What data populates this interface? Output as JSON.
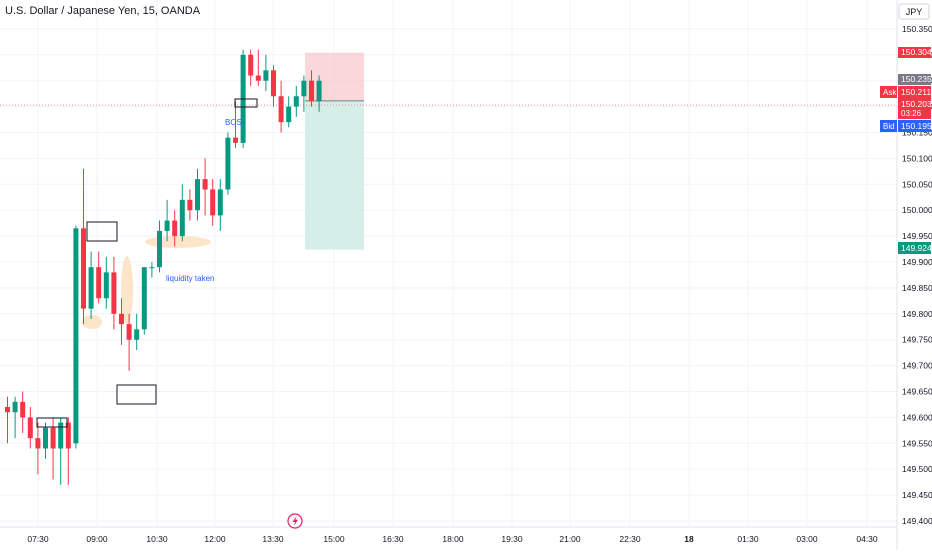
{
  "header": {
    "title": "U.S. Dollar / Japanese Yen, 15, OANDA"
  },
  "currency": "JPY",
  "chart_data": {
    "type": "candlestick",
    "title": "U.S. Dollar / Japanese Yen, 15, OANDA",
    "ylim": [
      149.395,
      150.385
    ],
    "y_ticks": [
      150.35,
      150.3,
      150.25,
      150.2,
      150.15,
      150.1,
      150.05,
      150.0,
      149.95,
      149.9,
      149.85,
      149.8,
      149.75,
      149.7,
      149.65,
      149.6,
      149.55,
      149.5,
      149.45,
      149.4
    ],
    "x_ticks": [
      "07:30",
      "09:00",
      "10:30",
      "12:00",
      "13:30",
      "15:00",
      "16:30",
      "18:00",
      "19:30",
      "21:00",
      "22:30",
      "18",
      "01:30",
      "03:00",
      "04:30"
    ],
    "candles": [
      {
        "o": 149.62,
        "h": 149.64,
        "l": 149.55,
        "c": 149.61
      },
      {
        "o": 149.61,
        "h": 149.64,
        "l": 149.56,
        "c": 149.63
      },
      {
        "o": 149.63,
        "h": 149.65,
        "l": 149.57,
        "c": 149.6
      },
      {
        "o": 149.6,
        "h": 149.62,
        "l": 149.54,
        "c": 149.56
      },
      {
        "o": 149.56,
        "h": 149.59,
        "l": 149.49,
        "c": 149.54
      },
      {
        "o": 149.54,
        "h": 149.59,
        "l": 149.52,
        "c": 149.58
      },
      {
        "o": 149.58,
        "h": 149.6,
        "l": 149.48,
        "c": 149.54
      },
      {
        "o": 149.54,
        "h": 149.6,
        "l": 149.47,
        "c": 149.59
      },
      {
        "o": 149.59,
        "h": 149.6,
        "l": 149.47,
        "c": 149.54
      },
      {
        "o": 149.55,
        "h": 149.97,
        "l": 149.54,
        "c": 149.965
      },
      {
        "o": 149.965,
        "h": 150.08,
        "l": 149.78,
        "c": 149.81
      },
      {
        "o": 149.81,
        "h": 149.92,
        "l": 149.79,
        "c": 149.89
      },
      {
        "o": 149.89,
        "h": 149.92,
        "l": 149.82,
        "c": 149.83
      },
      {
        "o": 149.83,
        "h": 149.91,
        "l": 149.81,
        "c": 149.88
      },
      {
        "o": 149.88,
        "h": 149.91,
        "l": 149.77,
        "c": 149.8
      },
      {
        "o": 149.8,
        "h": 149.83,
        "l": 149.74,
        "c": 149.78
      },
      {
        "o": 149.78,
        "h": 149.8,
        "l": 149.69,
        "c": 149.75
      },
      {
        "o": 149.75,
        "h": 149.8,
        "l": 149.73,
        "c": 149.77
      },
      {
        "o": 149.77,
        "h": 149.89,
        "l": 149.76,
        "c": 149.89
      },
      {
        "o": 149.89,
        "h": 149.9,
        "l": 149.87,
        "c": 149.89
      },
      {
        "o": 149.89,
        "h": 149.98,
        "l": 149.88,
        "c": 149.96
      },
      {
        "o": 149.96,
        "h": 150.02,
        "l": 149.94,
        "c": 149.98
      },
      {
        "o": 149.98,
        "h": 150.0,
        "l": 149.93,
        "c": 149.95
      },
      {
        "o": 149.95,
        "h": 150.05,
        "l": 149.94,
        "c": 150.02
      },
      {
        "o": 150.02,
        "h": 150.04,
        "l": 149.98,
        "c": 150.0
      },
      {
        "o": 150.0,
        "h": 150.08,
        "l": 149.98,
        "c": 150.06
      },
      {
        "o": 150.06,
        "h": 150.1,
        "l": 149.99,
        "c": 150.04
      },
      {
        "o": 150.04,
        "h": 150.06,
        "l": 149.97,
        "c": 149.99
      },
      {
        "o": 149.99,
        "h": 150.06,
        "l": 149.96,
        "c": 150.04
      },
      {
        "o": 150.04,
        "h": 150.15,
        "l": 150.03,
        "c": 150.14
      },
      {
        "o": 150.14,
        "h": 150.21,
        "l": 150.12,
        "c": 150.13
      },
      {
        "o": 150.13,
        "h": 150.31,
        "l": 150.12,
        "c": 150.3
      },
      {
        "o": 150.3,
        "h": 150.31,
        "l": 150.24,
        "c": 150.26
      },
      {
        "o": 150.26,
        "h": 150.31,
        "l": 150.24,
        "c": 150.25
      },
      {
        "o": 150.25,
        "h": 150.3,
        "l": 150.23,
        "c": 150.27
      },
      {
        "o": 150.27,
        "h": 150.28,
        "l": 150.2,
        "c": 150.22
      },
      {
        "o": 150.22,
        "h": 150.25,
        "l": 150.15,
        "c": 150.17
      },
      {
        "o": 150.17,
        "h": 150.22,
        "l": 150.16,
        "c": 150.2
      },
      {
        "o": 150.2,
        "h": 150.24,
        "l": 150.18,
        "c": 150.22
      },
      {
        "o": 150.22,
        "h": 150.26,
        "l": 150.19,
        "c": 150.25
      },
      {
        "o": 150.25,
        "h": 150.27,
        "l": 150.2,
        "c": 150.21
      },
      {
        "o": 150.21,
        "h": 150.26,
        "l": 150.19,
        "c": 150.25
      }
    ],
    "annotations": [
      {
        "text": "BOS",
        "color": "#2962ff"
      },
      {
        "text": "liquidity taken",
        "color": "#2962ff"
      }
    ],
    "position": {
      "entry": 150.211,
      "stop": 150.304,
      "target": 149.924,
      "stop_label": "150.304",
      "target_label": "149.924"
    },
    "price_tags": {
      "last": "150.235",
      "ask_label": "Ask",
      "ask": "150.211",
      "current": "150.203",
      "countdown": "03:26",
      "bid_label": "Bid",
      "bid": "150.195"
    },
    "colors": {
      "up": "#089981",
      "down": "#f23645",
      "stop_zone": "#f7c9ce",
      "target_zone": "#cfebe4",
      "ask": "#f23645",
      "bid": "#2962ff",
      "last": "#787b86",
      "highlight": "#fbe0be"
    }
  }
}
